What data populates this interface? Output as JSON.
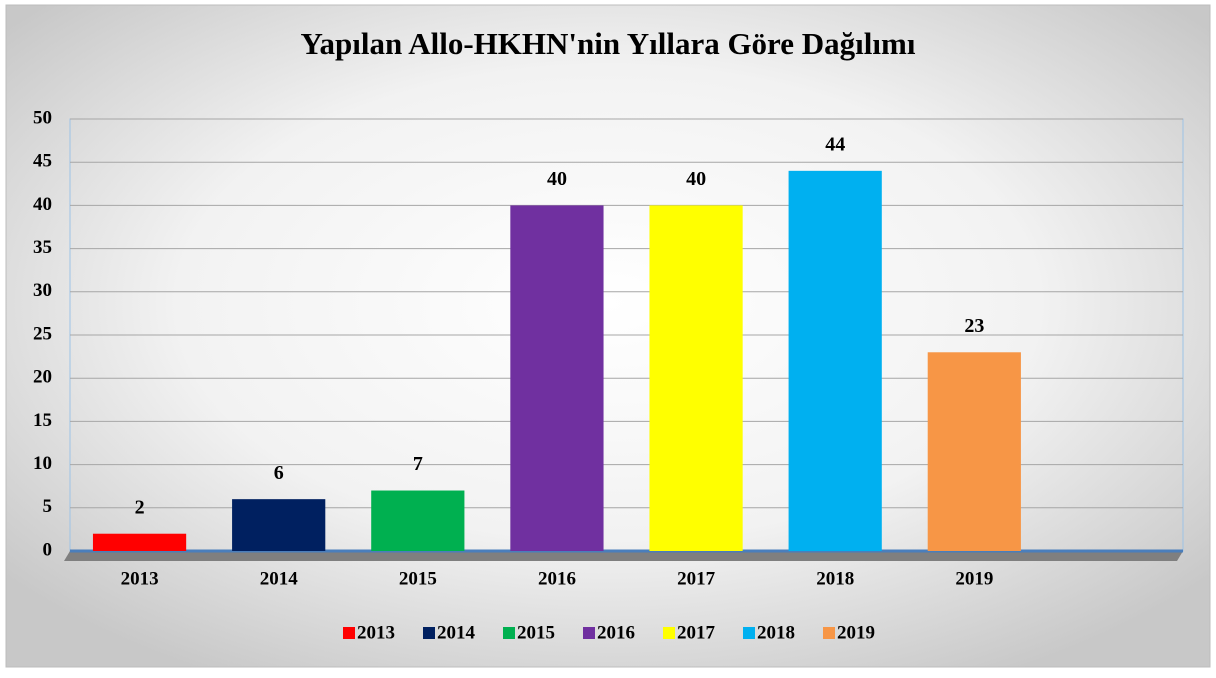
{
  "chart_data": {
    "type": "bar",
    "title": "Yapılan Allo-HKHN'nin Yıllara Göre Dağılımı",
    "categories": [
      "2013",
      "2014",
      "2015",
      "2016",
      "2017",
      "2018",
      "2019",
      null
    ],
    "values": [
      2,
      6,
      7,
      40,
      40,
      44,
      23,
      null
    ],
    "colors": [
      "#ff0000",
      "#002060",
      "#00b050",
      "#7030a0",
      "#ffff00",
      "#00b0f0",
      "#f79646",
      null
    ],
    "ylim": [
      0,
      50
    ],
    "yticks": [
      0,
      5,
      10,
      15,
      20,
      25,
      30,
      35,
      40,
      45,
      50
    ],
    "grid": true,
    "legend": "bottom"
  }
}
